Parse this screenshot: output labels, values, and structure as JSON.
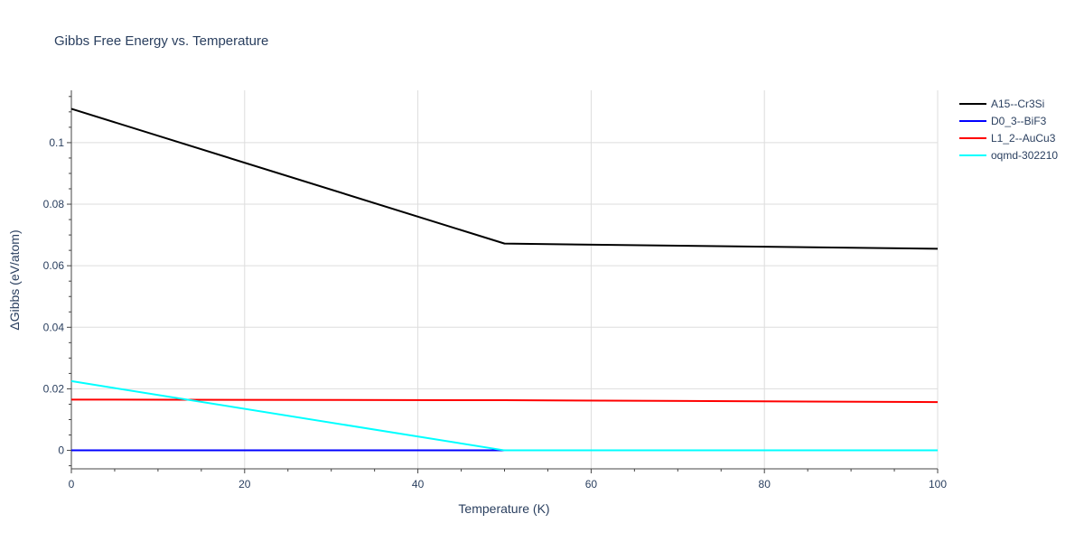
{
  "chart_data": {
    "type": "line",
    "title": "Gibbs Free Energy vs. Temperature",
    "xlabel": "Temperature (K)",
    "ylabel": "ΔGibbs (eV/atom)",
    "xlim": [
      0,
      100
    ],
    "ylim": [
      -0.006,
      0.117
    ],
    "xticks": [
      0,
      20,
      40,
      60,
      80,
      100
    ],
    "xtick_labels": [
      "0",
      "20",
      "40",
      "60",
      "80",
      "100"
    ],
    "yticks": [
      0,
      0.02,
      0.04,
      0.06,
      0.08,
      0.1
    ],
    "ytick_labels": [
      "0",
      "0.02",
      "0.04",
      "0.06",
      "0.08",
      "0.1"
    ],
    "grid": true,
    "legend_position": "top-right",
    "series": [
      {
        "name": "A15--Cr3Si",
        "color": "#000000",
        "x": [
          0,
          50,
          100
        ],
        "y": [
          0.111,
          0.0672,
          0.0655
        ]
      },
      {
        "name": "D0_3--BiF3",
        "color": "#0000ff",
        "x": [
          0,
          50,
          100
        ],
        "y": [
          0,
          0,
          0
        ]
      },
      {
        "name": "L1_2--AuCu3",
        "color": "#ff0000",
        "x": [
          0,
          50,
          100
        ],
        "y": [
          0.0165,
          0.0163,
          0.0157
        ]
      },
      {
        "name": "oqmd-302210",
        "color": "#00ffff",
        "x": [
          0,
          50,
          100
        ],
        "y": [
          0.0225,
          0,
          0
        ]
      }
    ]
  }
}
